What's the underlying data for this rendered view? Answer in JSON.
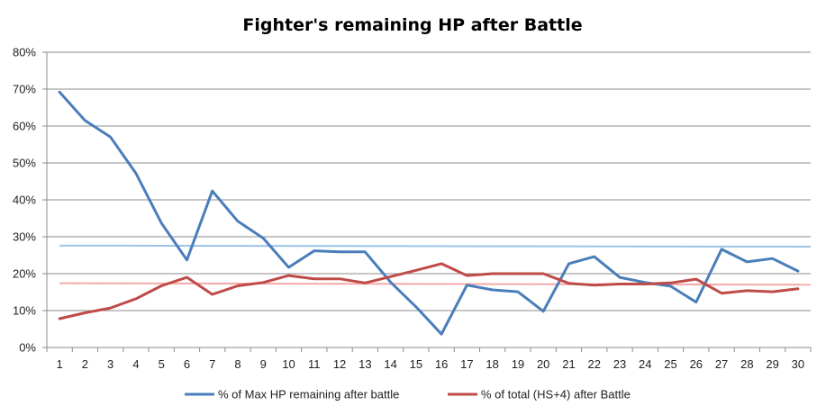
{
  "chart_data": {
    "type": "line",
    "title": "Fighter's remaining HP after Battle",
    "x": [
      1,
      2,
      3,
      4,
      5,
      6,
      7,
      8,
      9,
      10,
      11,
      12,
      13,
      14,
      15,
      16,
      17,
      18,
      19,
      20,
      21,
      22,
      23,
      24,
      25,
      26,
      27,
      28,
      29,
      30
    ],
    "x_tick_labels": [
      "1",
      "2",
      "3",
      "4",
      "5",
      "6",
      "7",
      "8",
      "9",
      "10",
      "11",
      "12",
      "13",
      "14",
      "15",
      "16",
      "17",
      "18",
      "19",
      "20",
      "21",
      "22",
      "23",
      "24",
      "25",
      "26",
      "27",
      "28",
      "29",
      "30"
    ],
    "ylim": [
      0,
      0.8
    ],
    "y_tick_labels": [
      "0%",
      "10%",
      "20%",
      "30%",
      "40%",
      "50%",
      "60%",
      "70%",
      "80%"
    ],
    "grid": true,
    "legend_position": "bottom",
    "series": [
      {
        "name": "% of Max HP remaining after battle",
        "color": "#4a7ebb",
        "values": [
          0.692,
          0.615,
          0.57,
          0.472,
          0.337,
          0.237,
          0.424,
          0.342,
          0.296,
          0.217,
          0.262,
          0.259,
          0.259,
          0.177,
          0.11,
          0.036,
          0.169,
          0.156,
          0.151,
          0.098,
          0.227,
          0.246,
          0.19,
          0.176,
          0.166,
          0.123,
          0.266,
          0.232,
          0.241,
          0.207
        ]
      },
      {
        "name": "% of total (HS+4) after Battle",
        "color": "#be4b48",
        "values": [
          0.078,
          0.094,
          0.107,
          0.132,
          0.167,
          0.19,
          0.144,
          0.167,
          0.176,
          0.195,
          0.186,
          0.186,
          0.175,
          0.192,
          0.209,
          0.227,
          0.195,
          0.2,
          0.2,
          0.2,
          0.174,
          0.169,
          0.172,
          0.172,
          0.175,
          0.185,
          0.147,
          0.154,
          0.151,
          0.159
        ]
      }
    ],
    "reference_lines": [
      {
        "color": "#9dc3e6",
        "values": [
          0.276,
          0.273
        ]
      },
      {
        "color": "#f4a9a8",
        "values": [
          0.174,
          0.17
        ]
      }
    ]
  }
}
